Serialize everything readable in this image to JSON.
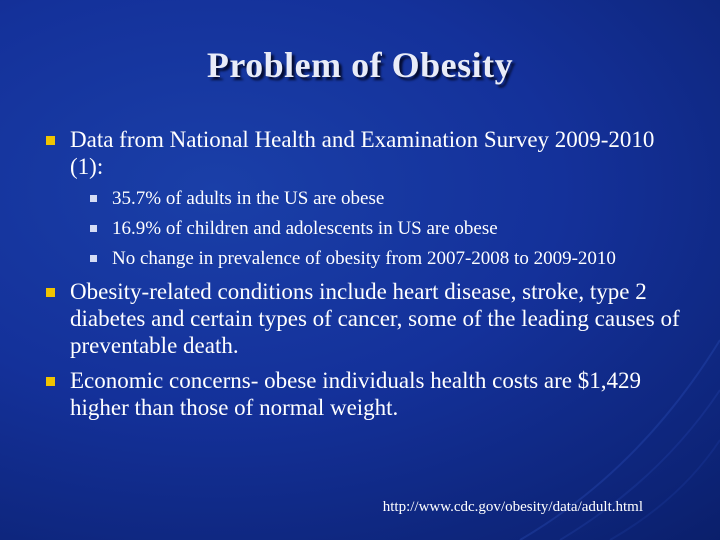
{
  "slide": {
    "title": "Problem of Obesity",
    "bullets": [
      {
        "text": "Data from National Health and Examination Survey 2009-2010 (1):",
        "sub": [
          "35.7% of adults in the US are obese",
          "16.9% of children and adolescents in US are obese",
          "No change in prevalence of obesity from 2007-2008 to 2009-2010"
        ]
      },
      {
        "text": "Obesity-related conditions include heart disease, stroke, type 2 diabetes and certain types of cancer, some of the leading causes of preventable death."
      },
      {
        "text": "Economic concerns- obese individuals health costs are $1,429 higher than those of normal weight."
      }
    ],
    "source": "http://www.cdc.gov/obesity/data/adult.html"
  },
  "colors": {
    "background": "#14319a",
    "title_text": "#e9ecf8",
    "bullet_primary": "#f0c400",
    "bullet_secondary": "#d5dcf5"
  }
}
